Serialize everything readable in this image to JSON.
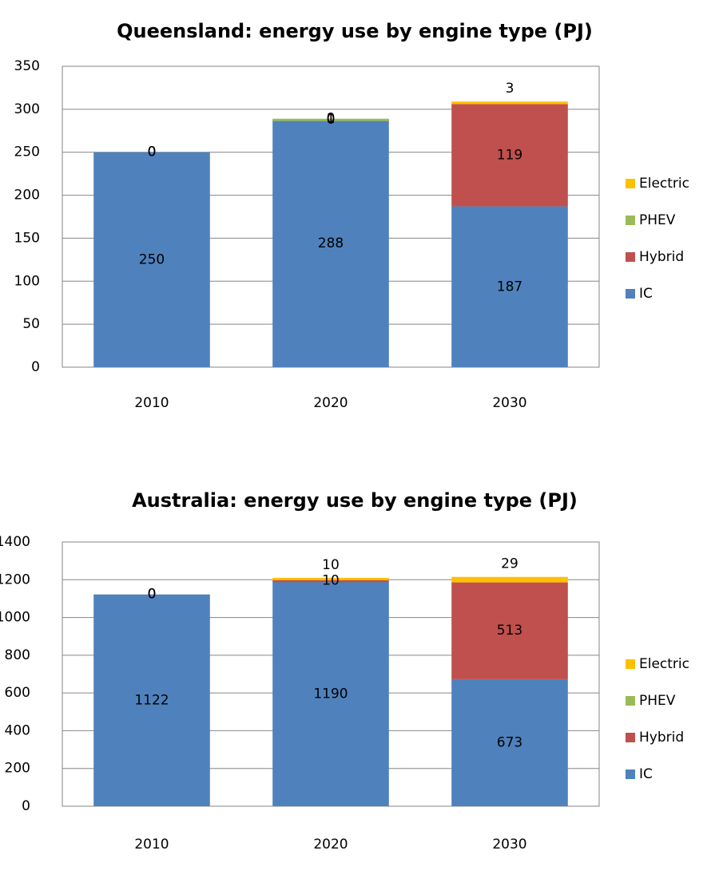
{
  "chart_data": [
    {
      "type": "stacked_bar",
      "title": "Queensland: energy use by engine type (PJ)",
      "categories": [
        "2010",
        "2020",
        "2030"
      ],
      "series": [
        {
          "name": "IC",
          "color": "#4f81bd",
          "values": [
            250,
            288,
            187
          ]
        },
        {
          "name": "Hybrid",
          "color": "#c0504d",
          "values": [
            0,
            0,
            119
          ]
        },
        {
          "name": "PHEV",
          "color": "#9bbb59",
          "values": [
            0,
            1,
            null
          ]
        },
        {
          "name": "Electric",
          "color": "#ffc000",
          "values": [
            0,
            0,
            3
          ]
        }
      ],
      "ylim": [
        0,
        350
      ],
      "yticks": [
        0,
        50,
        100,
        150,
        200,
        250,
        300,
        350
      ],
      "grid": true,
      "legend": "right"
    },
    {
      "type": "stacked_bar",
      "title": "Australia: energy use by engine type (PJ)",
      "categories": [
        "2010",
        "2020",
        "2030"
      ],
      "series": [
        {
          "name": "IC",
          "color": "#4f81bd",
          "values": [
            1122,
            1190,
            673
          ]
        },
        {
          "name": "Hybrid",
          "color": "#c0504d",
          "values": [
            0,
            10,
            513
          ]
        },
        {
          "name": "PHEV",
          "color": "#9bbb59",
          "values": [
            0,
            null,
            null
          ]
        },
        {
          "name": "Electric",
          "color": "#ffc000",
          "values": [
            0,
            10,
            29
          ]
        }
      ],
      "ylim": [
        0,
        1400
      ],
      "yticks": [
        0,
        200,
        400,
        600,
        800,
        1000,
        1200,
        1400
      ],
      "grid": true,
      "legend": "right"
    }
  ]
}
